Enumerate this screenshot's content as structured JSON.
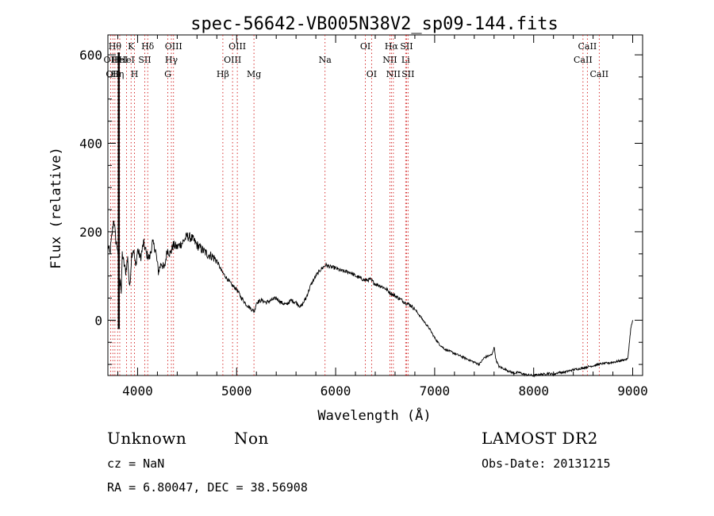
{
  "chart_data": {
    "type": "line",
    "title": "spec-56642-VB005N38V2_sp09-144.fits",
    "xlabel": "Wavelength (Å)",
    "ylabel": "Flux (relative)",
    "xlim": [
      3700,
      9100
    ],
    "ylim": [
      -125,
      645
    ],
    "x_ticks": [
      4000,
      5000,
      6000,
      7000,
      8000,
      9000
    ],
    "y_ticks": [
      0,
      200,
      400,
      600
    ],
    "grid": false,
    "series": [
      {
        "x": [
          3700,
          3720,
          3740,
          3760,
          3780,
          3800,
          3815,
          3825,
          3835,
          3845,
          3860,
          3880,
          3900,
          3920,
          3940,
          3960,
          3980,
          4000,
          4030,
          4060,
          4090,
          4120,
          4150,
          4180,
          4210,
          4240,
          4270,
          4300,
          4330,
          4360,
          4400,
          4450,
          4500,
          4550,
          4600,
          4650,
          4700,
          4750,
          4800,
          4850,
          4900,
          4950,
          5000,
          5050,
          5100,
          5150,
          5180,
          5200,
          5250,
          5300,
          5350,
          5400,
          5450,
          5500,
          5550,
          5600,
          5650,
          5700,
          5750,
          5800,
          5850,
          5900,
          5950,
          6000,
          6050,
          6100,
          6150,
          6200,
          6250,
          6300,
          6350,
          6400,
          6450,
          6500,
          6550,
          6600,
          6650,
          6700,
          6750,
          6800,
          6850,
          6900,
          6950,
          7000,
          7050,
          7100,
          7150,
          7200,
          7250,
          7300,
          7350,
          7400,
          7450,
          7500,
          7550,
          7580,
          7600,
          7620,
          7650,
          7700,
          7750,
          7800,
          7850,
          7900,
          7950,
          8000,
          8050,
          8100,
          8150,
          8200,
          8250,
          8300,
          8350,
          8400,
          8450,
          8500,
          8550,
          8600,
          8650,
          8700,
          8750,
          8800,
          8850,
          8900,
          8950,
          8980,
          9000
        ],
        "y": [
          170,
          150,
          190,
          230,
          180,
          160,
          60,
          100,
          60,
          150,
          130,
          110,
          140,
          70,
          150,
          160,
          120,
          160,
          140,
          175,
          150,
          140,
          175,
          160,
          110,
          130,
          115,
          160,
          150,
          170,
          165,
          175,
          190,
          185,
          170,
          160,
          150,
          145,
          135,
          110,
          95,
          80,
          70,
          50,
          35,
          25,
          20,
          40,
          45,
          40,
          45,
          50,
          40,
          35,
          45,
          40,
          30,
          50,
          80,
          100,
          115,
          125,
          120,
          118,
          112,
          110,
          108,
          100,
          95,
          90,
          92,
          82,
          78,
          72,
          62,
          55,
          48,
          40,
          35,
          25,
          10,
          -5,
          -20,
          -40,
          -55,
          -65,
          -70,
          -75,
          -80,
          -85,
          -90,
          -95,
          -100,
          -85,
          -80,
          -78,
          -60,
          -90,
          -105,
          -110,
          -115,
          -120,
          -118,
          -122,
          -124,
          -125,
          -123,
          -122,
          -120,
          -123,
          -118,
          -118,
          -115,
          -112,
          -110,
          -108,
          -105,
          -103,
          -100,
          -98,
          -97,
          -95,
          -93,
          -90,
          -88,
          -20,
          0
        ]
      }
    ],
    "line_markers": [
      {
        "wavelength": 3727,
        "label": "OII",
        "row": 1
      },
      {
        "wavelength": 3750,
        "label": "OII",
        "row": 2
      },
      {
        "wavelength": 3771,
        "label": "Hθ",
        "row": 0
      },
      {
        "wavelength": 3798,
        "label": "Hη",
        "row": 2
      },
      {
        "wavelength": 3820,
        "label": "HeI",
        "row": 1
      },
      {
        "wavelength": 3889,
        "label": "HeI",
        "row": 1
      },
      {
        "wavelength": 3934,
        "label": "K",
        "row": 0
      },
      {
        "wavelength": 3969,
        "label": "H",
        "row": 2
      },
      {
        "wavelength": 4072,
        "label": "SII",
        "row": 1
      },
      {
        "wavelength": 4102,
        "label": "Hδ",
        "row": 0
      },
      {
        "wavelength": 4305,
        "label": "G",
        "row": 2
      },
      {
        "wavelength": 4341,
        "label": "Hγ",
        "row": 1
      },
      {
        "wavelength": 4363,
        "label": "OIII",
        "row": 0
      },
      {
        "wavelength": 4861,
        "label": "Hβ",
        "row": 2
      },
      {
        "wavelength": 4959,
        "label": "OIII",
        "row": 1
      },
      {
        "wavelength": 5007,
        "label": "OIII",
        "row": 0
      },
      {
        "wavelength": 5175,
        "label": "Mg",
        "row": 2
      },
      {
        "wavelength": 5893,
        "label": "Na",
        "row": 1
      },
      {
        "wavelength": 6300,
        "label": "OI",
        "row": 0
      },
      {
        "wavelength": 6363,
        "label": "OI",
        "row": 2
      },
      {
        "wavelength": 6548,
        "label": "NII",
        "row": 1
      },
      {
        "wavelength": 6563,
        "label": "Hα",
        "row": 0
      },
      {
        "wavelength": 6583,
        "label": "NII",
        "row": 2
      },
      {
        "wavelength": 6707,
        "label": "Li",
        "row": 1
      },
      {
        "wavelength": 6716,
        "label": "SII",
        "row": 0
      },
      {
        "wavelength": 6731,
        "label": "SII",
        "row": 2
      },
      {
        "wavelength": 8498,
        "label": "CaII",
        "row": 1
      },
      {
        "wavelength": 8542,
        "label": "CaII",
        "row": 0
      },
      {
        "wavelength": 8662,
        "label": "CaII",
        "row": 2
      }
    ],
    "marker_color": "#cc0000",
    "spike_wavelength": 3810
  },
  "footer": {
    "class": "Unknown",
    "subclass": "Non",
    "survey": "LAMOST DR2",
    "cz": "cz = NaN",
    "obs_date": "Obs-Date: 20131215",
    "coords": "RA =    6.80047, DEC =   38.56908"
  }
}
